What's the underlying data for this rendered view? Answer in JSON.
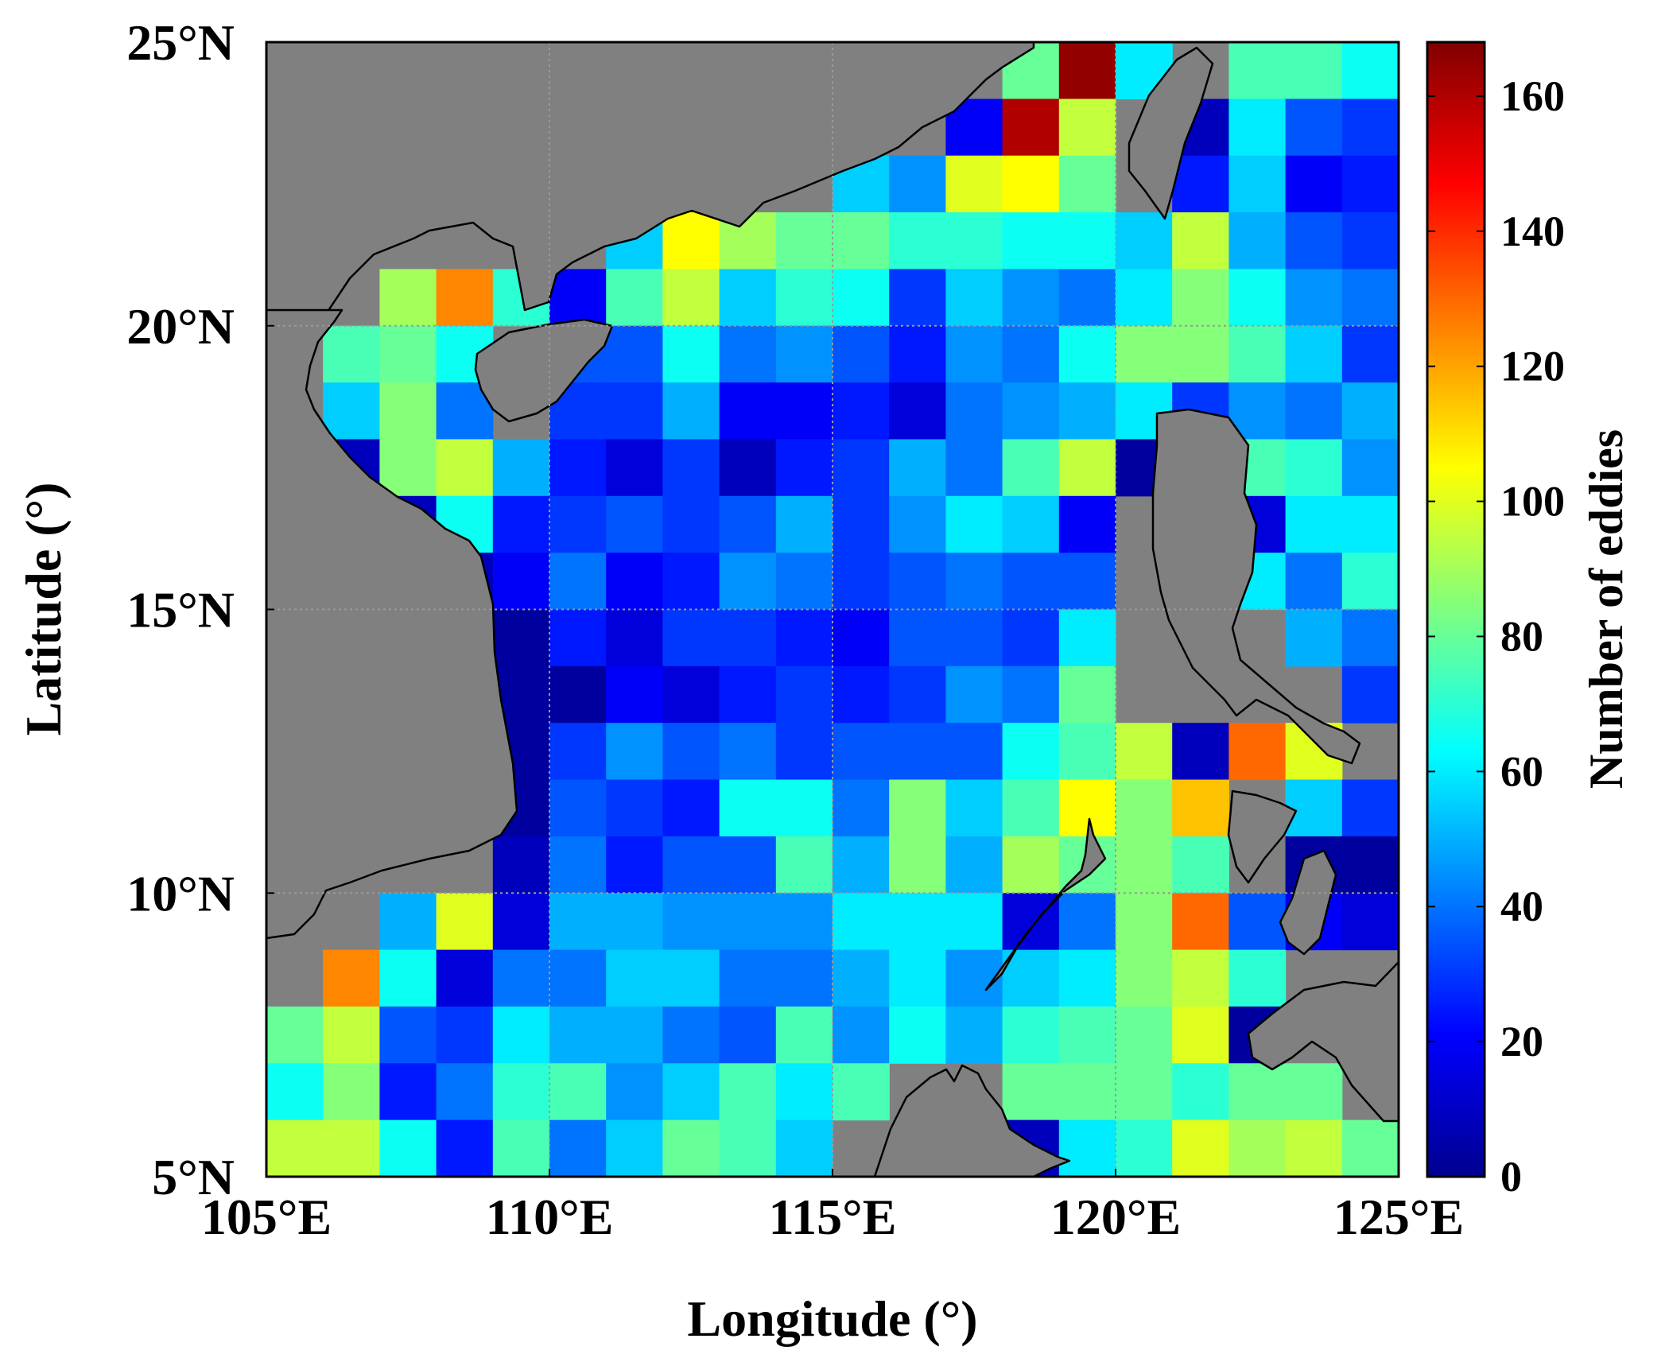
{
  "chart_data": {
    "type": "heatmap",
    "title": "",
    "xlabel": "Longitude (°)",
    "ylabel": "Latitude (°)",
    "colorbar_label": "Number of eddies",
    "colormap": "jet",
    "color_range": [
      0,
      168
    ],
    "colorbar_ticks": [
      0,
      20,
      40,
      60,
      80,
      100,
      120,
      140,
      160
    ],
    "colorbar_tick_labels": [
      "0",
      "20",
      "40",
      "60",
      "80",
      "100",
      "120",
      "140",
      "160"
    ],
    "xlim": [
      105,
      125
    ],
    "ylim": [
      5,
      25
    ],
    "x_ticks": [
      105,
      110,
      115,
      120,
      125
    ],
    "x_tick_labels": [
      "105°E",
      "110°E",
      "115°E",
      "120°E",
      "125°E"
    ],
    "y_ticks": [
      5,
      10,
      15,
      20,
      25
    ],
    "y_tick_labels": [
      "5°N",
      "10°N",
      "15°N",
      "20°N",
      "25°N"
    ],
    "grid": true,
    "cell_size_deg": 1,
    "rows_lat_from_north": [
      24.5,
      23.5,
      22.5,
      21.5,
      20.5,
      19.5,
      18.5,
      17.5,
      16.5,
      15.5,
      14.5,
      13.5,
      12.5,
      11.5,
      10.5,
      9.5,
      8.5,
      7.5,
      6.5,
      5.5
    ],
    "cols_lon": [
      105.5,
      106.5,
      107.5,
      108.5,
      109.5,
      110.5,
      111.5,
      112.5,
      113.5,
      114.5,
      115.5,
      116.5,
      117.5,
      118.5,
      119.5,
      120.5,
      121.5,
      122.5,
      123.5,
      124.5
    ],
    "grid_values": [
      [
        null,
        null,
        null,
        null,
        null,
        null,
        null,
        null,
        null,
        null,
        null,
        null,
        null,
        80,
        165,
        60,
        null,
        75,
        75,
        65
      ],
      [
        null,
        null,
        null,
        null,
        null,
        null,
        null,
        null,
        null,
        null,
        null,
        null,
        20,
        160,
        95,
        null,
        10,
        60,
        35,
        30
      ],
      [
        null,
        null,
        null,
        null,
        null,
        null,
        null,
        null,
        null,
        null,
        55,
        45,
        100,
        105,
        80,
        null,
        25,
        55,
        20,
        25
      ],
      [
        null,
        null,
        null,
        null,
        null,
        null,
        55,
        105,
        90,
        80,
        80,
        70,
        70,
        65,
        65,
        55,
        95,
        50,
        35,
        30
      ],
      [
        null,
        null,
        90,
        125,
        70,
        20,
        75,
        95,
        55,
        70,
        65,
        30,
        55,
        45,
        40,
        60,
        85,
        65,
        45,
        40
      ],
      [
        null,
        75,
        80,
        65,
        null,
        35,
        35,
        65,
        40,
        45,
        35,
        25,
        45,
        40,
        65,
        85,
        85,
        75,
        55,
        30
      ],
      [
        null,
        55,
        85,
        40,
        null,
        30,
        30,
        50,
        20,
        20,
        25,
        15,
        40,
        45,
        50,
        60,
        30,
        45,
        40,
        50
      ],
      [
        null,
        10,
        85,
        95,
        50,
        25,
        15,
        30,
        10,
        25,
        30,
        50,
        40,
        75,
        95,
        5,
        15,
        75,
        70,
        45
      ],
      [
        null,
        null,
        10,
        65,
        25,
        30,
        35,
        30,
        35,
        50,
        30,
        45,
        60,
        55,
        20,
        null,
        null,
        15,
        60,
        60
      ],
      [
        null,
        null,
        null,
        10,
        20,
        40,
        20,
        25,
        45,
        40,
        30,
        35,
        40,
        35,
        35,
        null,
        null,
        60,
        40,
        70
      ],
      [
        null,
        null,
        null,
        null,
        5,
        25,
        15,
        30,
        30,
        25,
        20,
        35,
        35,
        30,
        60,
        null,
        null,
        null,
        50,
        40
      ],
      [
        null,
        null,
        null,
        null,
        5,
        5,
        20,
        15,
        25,
        30,
        25,
        30,
        45,
        40,
        80,
        null,
        null,
        null,
        null,
        30
      ],
      [
        null,
        null,
        null,
        null,
        5,
        30,
        45,
        35,
        40,
        30,
        35,
        35,
        35,
        65,
        75,
        95,
        10,
        130,
        100,
        null
      ],
      [
        null,
        null,
        null,
        null,
        5,
        35,
        30,
        25,
        65,
        65,
        40,
        85,
        55,
        75,
        105,
        85,
        115,
        null,
        55,
        30
      ],
      [
        null,
        null,
        null,
        null,
        10,
        40,
        25,
        35,
        35,
        75,
        50,
        85,
        50,
        90,
        80,
        85,
        75,
        null,
        5,
        5
      ],
      [
        null,
        null,
        50,
        100,
        15,
        50,
        50,
        45,
        45,
        45,
        60,
        60,
        60,
        15,
        40,
        85,
        130,
        35,
        20,
        15
      ],
      [
        null,
        125,
        65,
        15,
        40,
        40,
        55,
        55,
        40,
        40,
        50,
        60,
        45,
        55,
        60,
        85,
        95,
        70,
        null,
        null
      ],
      [
        80,
        95,
        35,
        30,
        60,
        50,
        50,
        40,
        35,
        75,
        45,
        65,
        50,
        70,
        75,
        80,
        100,
        5,
        null,
        null
      ],
      [
        65,
        85,
        25,
        40,
        70,
        75,
        45,
        55,
        75,
        60,
        75,
        null,
        null,
        80,
        80,
        80,
        70,
        80,
        80,
        null
      ],
      [
        95,
        95,
        65,
        25,
        75,
        40,
        55,
        80,
        75,
        55,
        null,
        null,
        null,
        10,
        60,
        70,
        100,
        90,
        95,
        80
      ]
    ]
  }
}
